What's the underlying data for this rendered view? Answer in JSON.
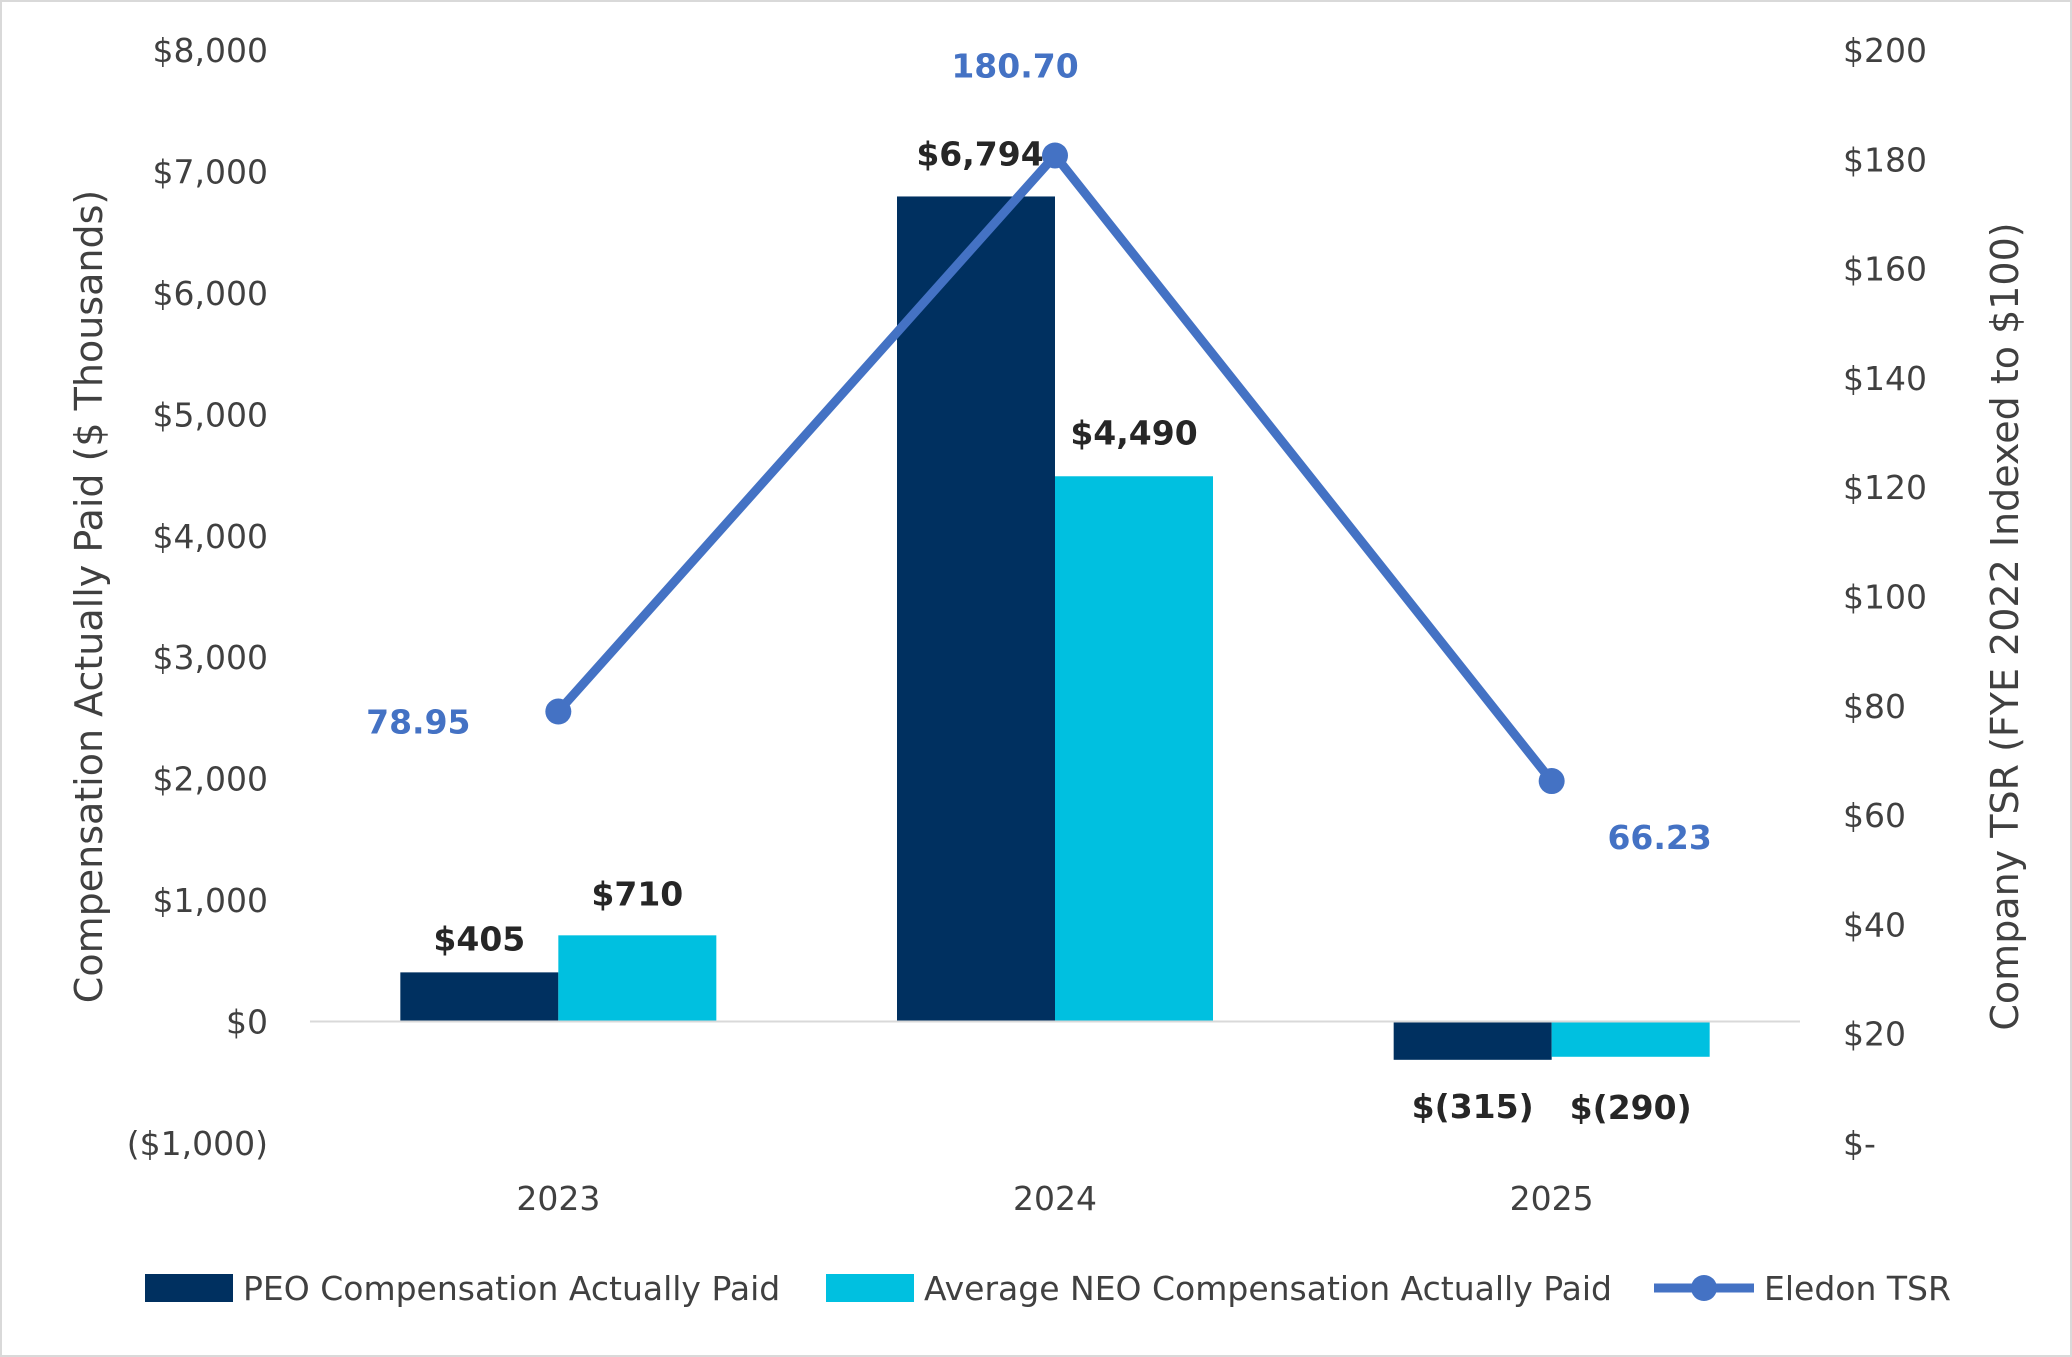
{
  "chart_data": {
    "type": "bar",
    "categories": [
      "2023",
      "2024",
      "2025"
    ],
    "series": [
      {
        "name": "PEO Compensation Actually Paid",
        "kind": "bar",
        "axis": "left",
        "color": "#003060",
        "values": [
          405,
          6794,
          -315
        ],
        "labels": [
          "$405",
          "$6,794",
          "$(315)"
        ]
      },
      {
        "name": "Average NEO Compensation Actually Paid",
        "kind": "bar",
        "axis": "left",
        "color": "#00c0e0",
        "values": [
          710,
          4490,
          -290
        ],
        "labels": [
          "$710",
          "$4,490",
          "$(290)"
        ]
      },
      {
        "name": "Eledon TSR",
        "kind": "line",
        "axis": "right",
        "color": "#4472c4",
        "values": [
          78.95,
          180.7,
          66.23
        ],
        "labels": [
          "78.95",
          "180.70",
          "66.23"
        ]
      }
    ],
    "ylabel": "Compensation Actually Paid ($ Thousands)",
    "y2label": "Company TSR (FYE 2022 Indexed to $100)",
    "ylim": [
      -1000,
      8000
    ],
    "y2lim": [
      0,
      200
    ],
    "yticks": [
      "($1,000)",
      "$0",
      "$1,000",
      "$2,000",
      "$3,000",
      "$4,000",
      "$5,000",
      "$6,000",
      "$7,000",
      "$8,000"
    ],
    "ytick_values": [
      -1000,
      0,
      1000,
      2000,
      3000,
      4000,
      5000,
      6000,
      7000,
      8000
    ],
    "y2ticks": [
      "$-",
      "$20",
      "$40",
      "$60",
      "$80",
      "$100",
      "$120",
      "$140",
      "$160",
      "$180",
      "$200"
    ],
    "y2tick_values": [
      0,
      20,
      40,
      60,
      80,
      100,
      120,
      140,
      160,
      180,
      200
    ],
    "legend_position": "bottom",
    "grid": false
  }
}
